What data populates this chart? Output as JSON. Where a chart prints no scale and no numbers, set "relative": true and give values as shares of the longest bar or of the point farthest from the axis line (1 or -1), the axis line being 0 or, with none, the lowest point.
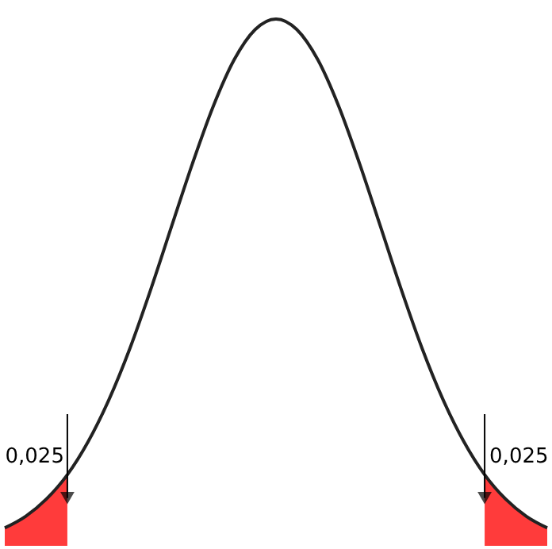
{
  "chart_data": {
    "type": "line",
    "relative": true,
    "categories": [
      null,
      null,
      null,
      null,
      null,
      null,
      null,
      null,
      null,
      null,
      null,
      null,
      null,
      null,
      null,
      null,
      null,
      null,
      null,
      null,
      null,
      null,
      null,
      null,
      null,
      null,
      null
    ],
    "series": [
      {
        "color": "#222222",
        "values": [
          0.034,
          0.056,
          0.089,
          0.135,
          0.198,
          0.278,
          0.375,
          0.487,
          0.607,
          0.726,
          0.835,
          0.923,
          0.98,
          1,
          0.98,
          0.923,
          0.835,
          0.726,
          0.607,
          0.487,
          0.375,
          0.278,
          0.198,
          0.135,
          0.089,
          0.056,
          0.034
        ]
      },
      {
        "type": "area",
        "color": "#ff3b3b",
        "values": [
          0.034,
          0.056,
          0.089,
          0.135,
          null,
          null,
          null,
          null,
          null,
          null,
          null,
          null,
          null,
          null,
          null,
          null,
          null,
          null,
          null,
          null,
          null,
          null,
          null,
          null,
          null,
          null,
          null
        ]
      },
      {
        "type": "area",
        "color": "#ff3b3b",
        "values": [
          null,
          null,
          null,
          null,
          null,
          null,
          null,
          null,
          null,
          null,
          null,
          null,
          null,
          null,
          null,
          null,
          null,
          null,
          null,
          null,
          null,
          null,
          null,
          0.135,
          0.089,
          0.056,
          0.034
        ]
      }
    ],
    "annotations": [
      "0,025",
      "0,025"
    ]
  }
}
